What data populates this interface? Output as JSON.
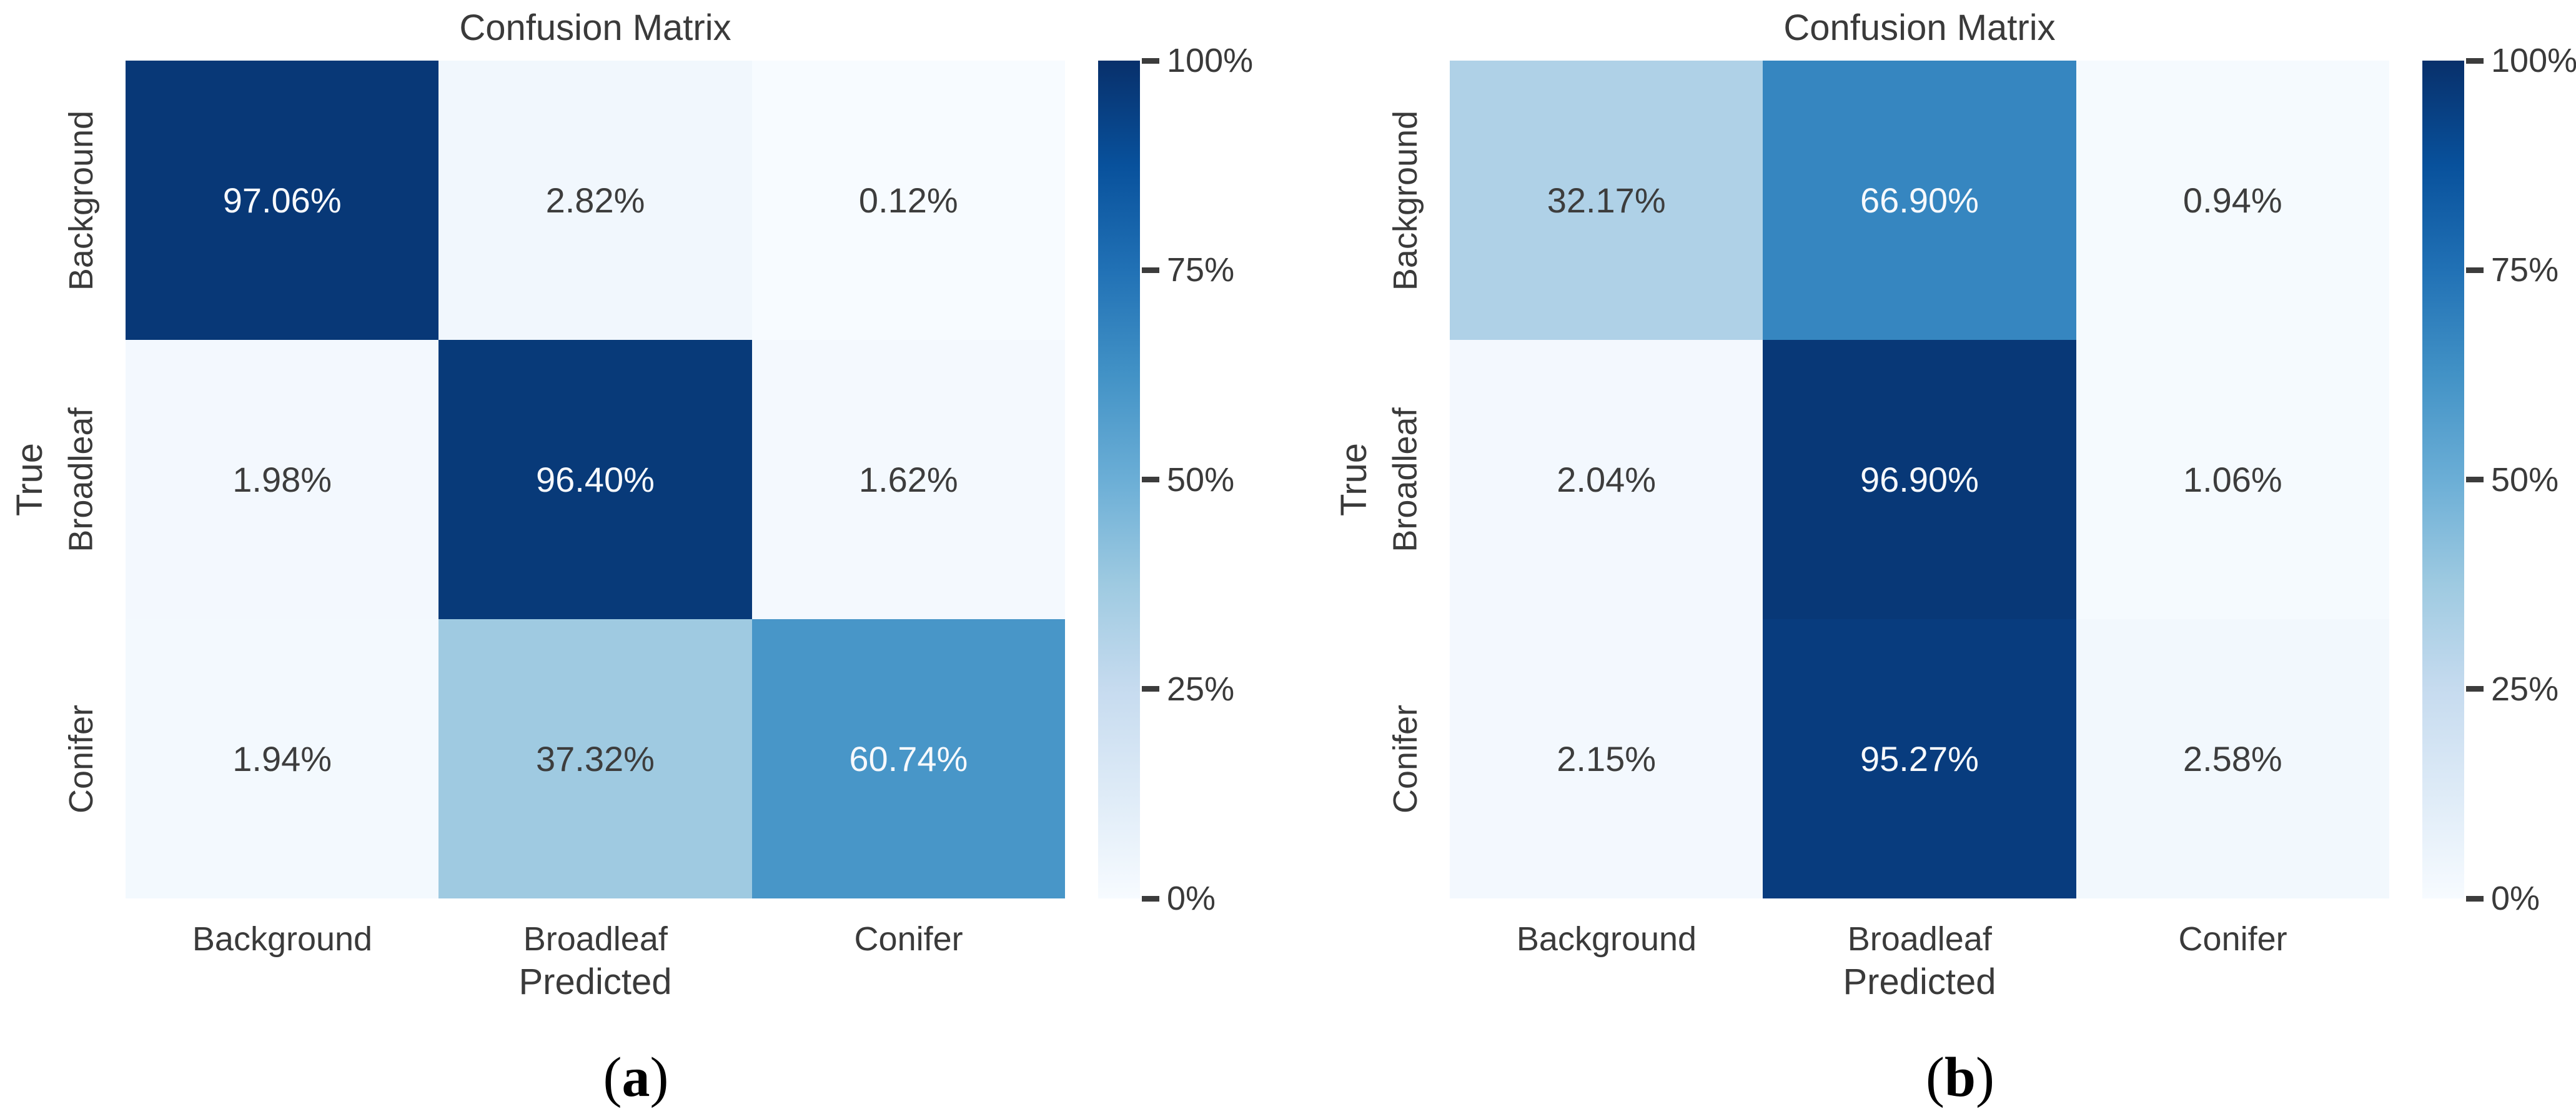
{
  "figure": {
    "background": "#ffffff",
    "captions": [
      {
        "pre": "(",
        "label": "a",
        "post": ")"
      },
      {
        "pre": "(",
        "label": "b",
        "post": ")"
      }
    ]
  },
  "colors": {
    "colormap_low": "#f7fbff",
    "colormap_high": "#08306b",
    "label_text": "#3a3a3a",
    "cell_text_dark": "#3d3d3d",
    "cell_text_light": "#f7f9fc"
  },
  "chart_data": [
    {
      "type": "heatmap",
      "panel": "a",
      "title": "Confusion Matrix",
      "xlabel": "Predicted",
      "ylabel": "True",
      "x_categories": [
        "Background",
        "Broadleaf",
        "Conifer"
      ],
      "y_categories": [
        "Background",
        "Broadleaf",
        "Conifer"
      ],
      "values_percent": [
        [
          97.06,
          2.82,
          0.12
        ],
        [
          1.98,
          96.4,
          1.62
        ],
        [
          1.94,
          37.32,
          60.74
        ]
      ],
      "cell_labels": [
        [
          "97.06%",
          "2.82%",
          "0.12%"
        ],
        [
          "1.98%",
          "96.40%",
          "1.62%"
        ],
        [
          "1.94%",
          "37.32%",
          "60.74%"
        ]
      ],
      "colorbar": {
        "colormap": "Blues",
        "range": [
          0,
          100
        ],
        "ticks": [
          "100%",
          "75%",
          "50%",
          "25%",
          "0%"
        ],
        "position": "right"
      },
      "grid": false
    },
    {
      "type": "heatmap",
      "panel": "b",
      "title": "Confusion Matrix",
      "xlabel": "Predicted",
      "ylabel": "True",
      "x_categories": [
        "Background",
        "Broadleaf",
        "Conifer"
      ],
      "y_categories": [
        "Background",
        "Broadleaf",
        "Conifer"
      ],
      "values_percent": [
        [
          32.17,
          66.9,
          0.94
        ],
        [
          2.04,
          96.9,
          1.06
        ],
        [
          2.15,
          95.27,
          2.58
        ]
      ],
      "cell_labels": [
        [
          "32.17%",
          "66.90%",
          "0.94%"
        ],
        [
          "2.04%",
          "96.90%",
          "1.06%"
        ],
        [
          "2.15%",
          "95.27%",
          "2.58%"
        ]
      ],
      "colorbar": {
        "colormap": "Blues",
        "range": [
          0,
          100
        ],
        "ticks": [
          "100%",
          "75%",
          "50%",
          "25%",
          "0%"
        ],
        "position": "right"
      },
      "grid": false
    }
  ]
}
